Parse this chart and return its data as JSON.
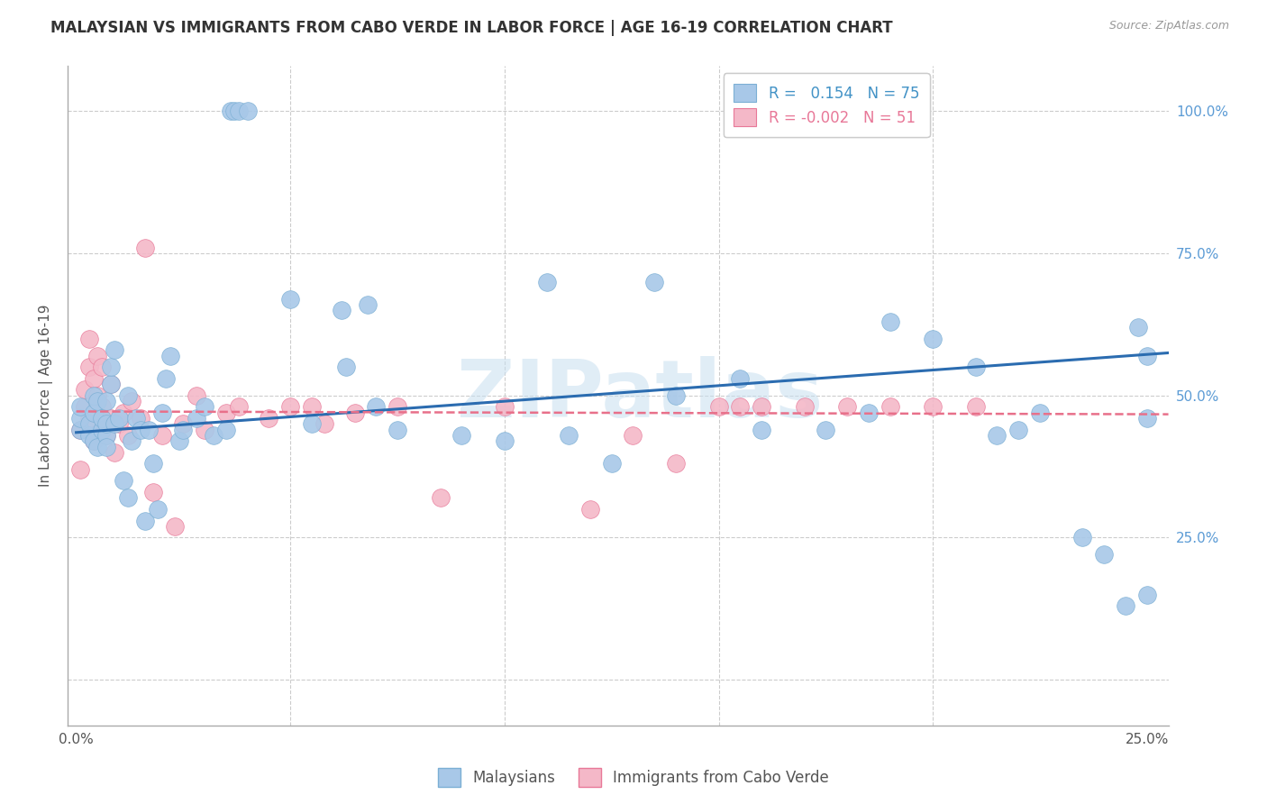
{
  "title": "MALAYSIAN VS IMMIGRANTS FROM CABO VERDE IN LABOR FORCE | AGE 16-19 CORRELATION CHART",
  "source": "Source: ZipAtlas.com",
  "ylabel": "In Labor Force | Age 16-19",
  "xlim": [
    -0.002,
    0.255
  ],
  "ylim": [
    -0.08,
    1.08
  ],
  "blue_color": "#a8c8e8",
  "blue_edge_color": "#7bafd4",
  "pink_color": "#f4b8c8",
  "pink_edge_color": "#e87898",
  "legend_blue_label_r": "0.154",
  "legend_blue_label_n": "75",
  "legend_pink_label_r": "-0.002",
  "legend_pink_label_n": "51",
  "watermark": "ZIPatlas",
  "legend_bottom_blue": "Malaysians",
  "legend_bottom_pink": "Immigrants from Cabo Verde",
  "blue_scatter_x": [
    0.001,
    0.001,
    0.001,
    0.003,
    0.003,
    0.004,
    0.004,
    0.004,
    0.005,
    0.005,
    0.006,
    0.006,
    0.007,
    0.007,
    0.007,
    0.007,
    0.008,
    0.008,
    0.009,
    0.009,
    0.01,
    0.011,
    0.012,
    0.012,
    0.013,
    0.014,
    0.015,
    0.016,
    0.017,
    0.018,
    0.019,
    0.02,
    0.021,
    0.022,
    0.024,
    0.025,
    0.028,
    0.03,
    0.032,
    0.035,
    0.036,
    0.037,
    0.038,
    0.04,
    0.05,
    0.055,
    0.062,
    0.063,
    0.068,
    0.07,
    0.075,
    0.09,
    0.1,
    0.11,
    0.115,
    0.125,
    0.135,
    0.14,
    0.155,
    0.16,
    0.175,
    0.185,
    0.19,
    0.2,
    0.21,
    0.215,
    0.22,
    0.225,
    0.235,
    0.24,
    0.245,
    0.248,
    0.25,
    0.25,
    0.25
  ],
  "blue_scatter_y": [
    0.44,
    0.46,
    0.48,
    0.43,
    0.45,
    0.42,
    0.47,
    0.5,
    0.41,
    0.49,
    0.44,
    0.46,
    0.43,
    0.45,
    0.41,
    0.49,
    0.52,
    0.55,
    0.58,
    0.45,
    0.46,
    0.35,
    0.32,
    0.5,
    0.42,
    0.46,
    0.44,
    0.28,
    0.44,
    0.38,
    0.3,
    0.47,
    0.53,
    0.57,
    0.42,
    0.44,
    0.46,
    0.48,
    0.43,
    0.44,
    1.0,
    1.0,
    1.0,
    1.0,
    0.67,
    0.45,
    0.65,
    0.55,
    0.66,
    0.48,
    0.44,
    0.43,
    0.42,
    0.7,
    0.43,
    0.38,
    0.7,
    0.5,
    0.53,
    0.44,
    0.44,
    0.47,
    0.63,
    0.6,
    0.55,
    0.43,
    0.44,
    0.47,
    0.25,
    0.22,
    0.13,
    0.62,
    0.57,
    0.46,
    0.15
  ],
  "pink_scatter_x": [
    0.001,
    0.001,
    0.002,
    0.002,
    0.003,
    0.003,
    0.003,
    0.004,
    0.004,
    0.005,
    0.005,
    0.006,
    0.006,
    0.006,
    0.007,
    0.008,
    0.008,
    0.009,
    0.01,
    0.011,
    0.012,
    0.013,
    0.015,
    0.016,
    0.018,
    0.02,
    0.023,
    0.025,
    0.028,
    0.03,
    0.035,
    0.038,
    0.045,
    0.05,
    0.055,
    0.058,
    0.065,
    0.075,
    0.085,
    0.1,
    0.12,
    0.13,
    0.14,
    0.15,
    0.155,
    0.16,
    0.17,
    0.18,
    0.19,
    0.2,
    0.21
  ],
  "pink_scatter_y": [
    0.44,
    0.37,
    0.48,
    0.51,
    0.46,
    0.55,
    0.6,
    0.53,
    0.42,
    0.5,
    0.57,
    0.44,
    0.48,
    0.55,
    0.43,
    0.52,
    0.46,
    0.4,
    0.45,
    0.47,
    0.43,
    0.49,
    0.46,
    0.76,
    0.33,
    0.43,
    0.27,
    0.45,
    0.5,
    0.44,
    0.47,
    0.48,
    0.46,
    0.48,
    0.48,
    0.45,
    0.47,
    0.48,
    0.32,
    0.48,
    0.3,
    0.43,
    0.38,
    0.48,
    0.48,
    0.48,
    0.48,
    0.48,
    0.48,
    0.48,
    0.48
  ],
  "blue_line_x": [
    0.0,
    0.255
  ],
  "blue_line_y": [
    0.435,
    0.575
  ],
  "pink_line_x": [
    0.0,
    0.255
  ],
  "pink_line_y": [
    0.472,
    0.467
  ],
  "ytick_positions": [
    0.0,
    0.25,
    0.5,
    0.75,
    1.0
  ],
  "ytick_labels_right": [
    "",
    "25.0%",
    "50.0%",
    "75.0%",
    "100.0%"
  ],
  "xtick_positions": [
    0.0,
    0.05,
    0.1,
    0.15,
    0.2,
    0.25
  ],
  "xtick_labels": [
    "0.0%",
    "",
    "",
    "",
    "",
    "25.0%"
  ],
  "grid_color": "#cccccc",
  "trend_blue_color": "#2b6cb0",
  "trend_pink_color": "#e8708a",
  "right_tick_color": "#5b9bd5",
  "background_color": "#ffffff"
}
